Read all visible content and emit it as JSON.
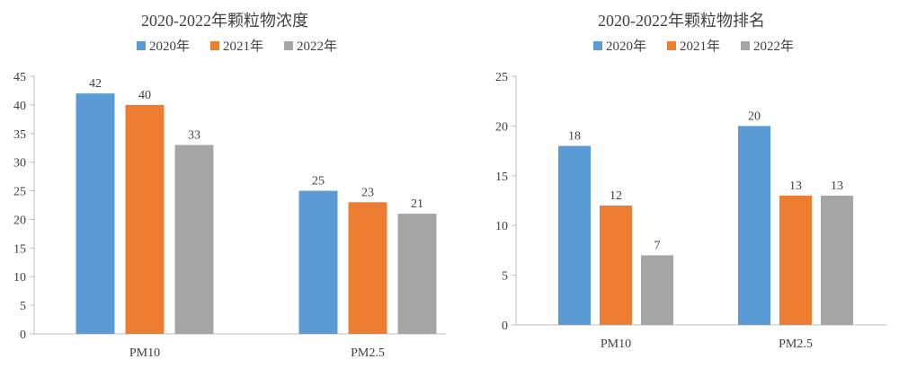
{
  "chart_data": [
    {
      "type": "bar",
      "title": "2020-2022年颗粒物浓度",
      "categories": [
        "PM10",
        "PM2.5"
      ],
      "series": [
        {
          "name": "2020年",
          "color": "#5b9bd5",
          "values": [
            42,
            25
          ]
        },
        {
          "name": "2021年",
          "color": "#ed7d31",
          "values": [
            40,
            23
          ]
        },
        {
          "name": "2022年",
          "color": "#a5a5a5",
          "values": [
            33,
            21
          ]
        }
      ],
      "ylim": [
        0,
        45
      ],
      "yticks": [
        "0",
        "5",
        "10",
        "15",
        "20",
        "25",
        "30",
        "35",
        "40",
        "45"
      ],
      "xlabel": "",
      "ylabel": "",
      "grid": false,
      "legend": "top-center"
    },
    {
      "type": "bar",
      "title": "2020-2022年颗粒物排名",
      "categories": [
        "PM10",
        "PM2.5"
      ],
      "series": [
        {
          "name": "2020年",
          "color": "#5b9bd5",
          "values": [
            18,
            20
          ]
        },
        {
          "name": "2021年",
          "color": "#ed7d31",
          "values": [
            12,
            13
          ]
        },
        {
          "name": "2022年",
          "color": "#a5a5a5",
          "values": [
            7,
            13
          ]
        }
      ],
      "ylim": [
        0,
        25
      ],
      "yticks": [
        "0",
        "5",
        "10",
        "15",
        "20",
        "25"
      ],
      "xlabel": "",
      "ylabel": "",
      "grid": false,
      "legend": "top-center"
    }
  ]
}
